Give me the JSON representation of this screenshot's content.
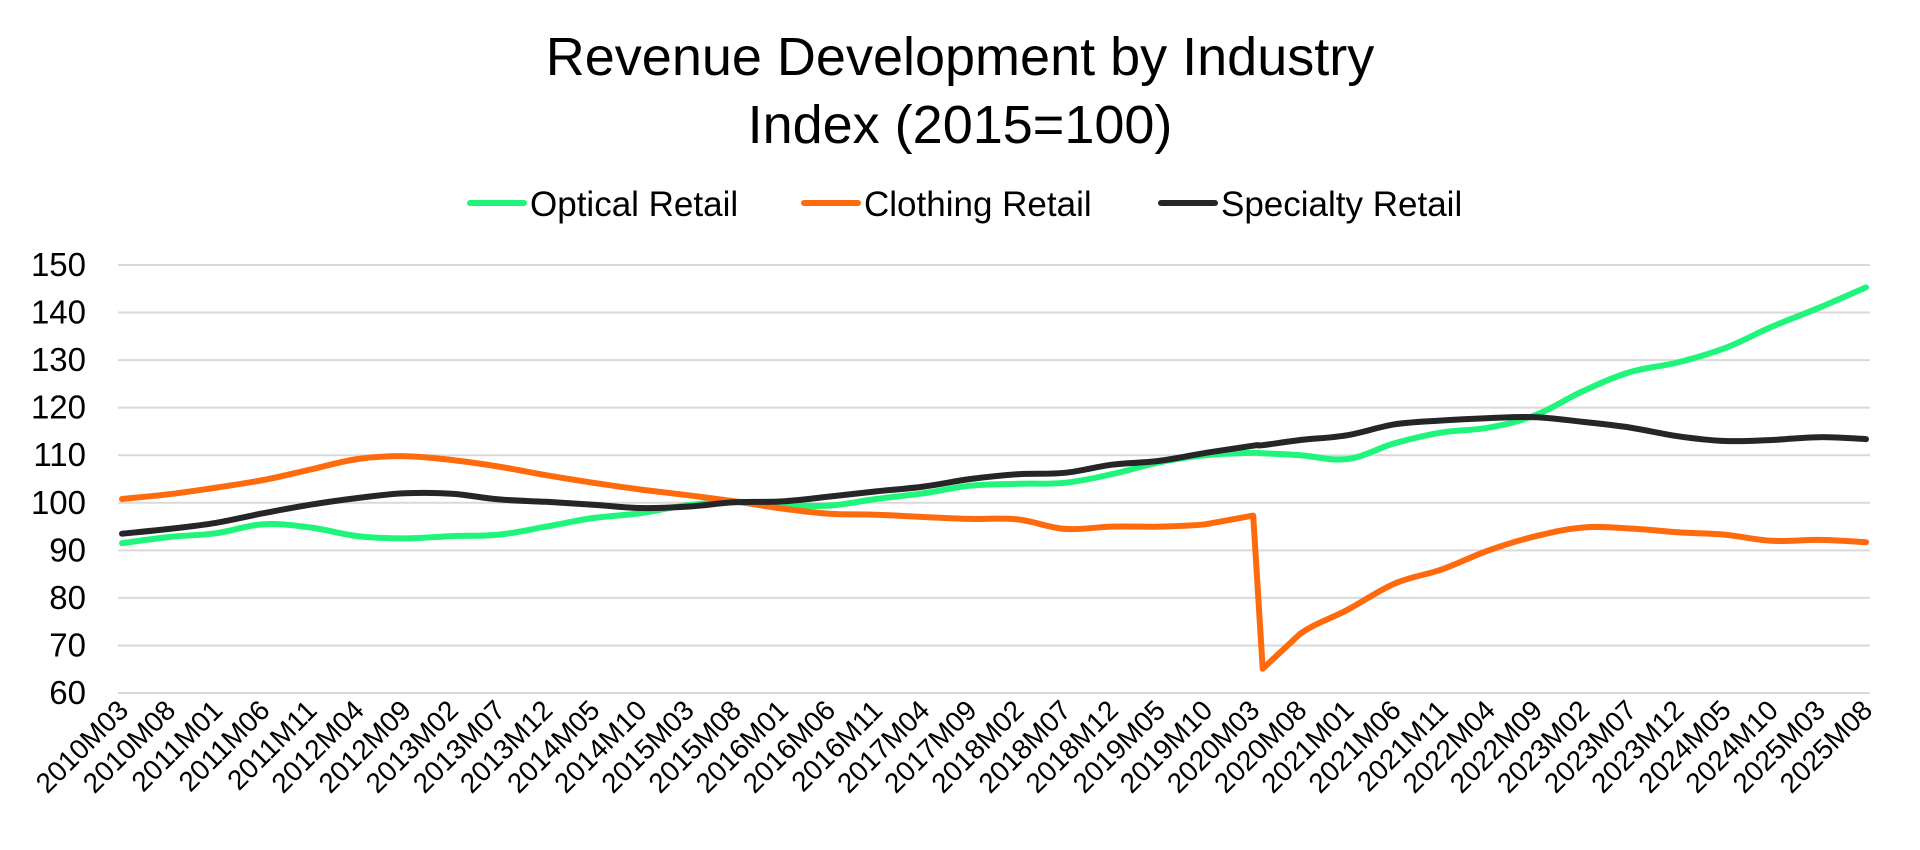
{
  "chart_data": {
    "type": "line",
    "title": "Revenue Development by Industry",
    "subtitle": "Index (2015=100)",
    "xlabel": "",
    "ylabel": "",
    "ylim": [
      60,
      150
    ],
    "yticks": [
      60,
      70,
      80,
      90,
      100,
      110,
      120,
      130,
      140,
      150
    ],
    "grid": true,
    "legend_position": "top",
    "xticks": [
      "2010M03",
      "2010M08",
      "2011M01",
      "2011M06",
      "2011M11",
      "2012M04",
      "2012M09",
      "2013M02",
      "2013M07",
      "2013M12",
      "2014M05",
      "2014M10",
      "2015M03",
      "2015M08",
      "2016M01",
      "2016M06",
      "2016M11",
      "2017M04",
      "2017M09",
      "2018M02",
      "2018M07",
      "2018M12",
      "2019M05",
      "2019M10",
      "2020M03",
      "2020M08",
      "2021M01",
      "2021M06",
      "2021M11",
      "2022M04",
      "2022M09",
      "2023M02",
      "2023M07",
      "2023M12",
      "2024M05",
      "2024M10",
      "2025M03",
      "2025M08"
    ],
    "x": [
      "2010M03",
      "2010M08",
      "2011M01",
      "2011M06",
      "2011M11",
      "2012M04",
      "2012M09",
      "2013M02",
      "2013M07",
      "2013M12",
      "2014M05",
      "2014M10",
      "2015M03",
      "2015M08",
      "2016M01",
      "2016M06",
      "2016M11",
      "2017M04",
      "2017M09",
      "2018M02",
      "2018M07",
      "2018M12",
      "2019M05",
      "2019M10",
      "2020M03",
      "2020M04",
      "2020M08",
      "2021M01",
      "2021M06",
      "2021M11",
      "2022M04",
      "2022M09",
      "2023M02",
      "2023M07",
      "2023M12",
      "2024M05",
      "2024M10",
      "2025M03",
      "2025M08"
    ],
    "series": [
      {
        "name": "Optical Retail",
        "color": "#1ef57a",
        "values": [
          91.5,
          92.8,
          93.6,
          95.5,
          94.8,
          93.0,
          92.5,
          93.0,
          93.3,
          95.0,
          96.8,
          97.8,
          99.5,
          100.2,
          99.6,
          99.4,
          100.8,
          102.0,
          103.6,
          104.0,
          104.2,
          106.0,
          108.5,
          110.0,
          110.5,
          110.4,
          110.0,
          109.2,
          112.5,
          114.8,
          115.8,
          118.5,
          123.5,
          127.5,
          129.5,
          132.5,
          137.0,
          141.0,
          145.3
        ]
      },
      {
        "name": "Clothing Retail",
        "color": "#ff6a0c",
        "values": [
          100.8,
          101.8,
          103.2,
          104.8,
          107.0,
          109.2,
          109.8,
          109.0,
          107.6,
          105.8,
          104.2,
          102.8,
          101.6,
          100.3,
          98.8,
          97.7,
          97.5,
          97.0,
          96.6,
          96.5,
          94.5,
          95.0,
          95.0,
          95.5,
          97.3,
          65.1,
          72.5,
          77.5,
          83.0,
          86.0,
          90.0,
          93.0,
          94.8,
          94.6,
          93.8,
          93.3,
          92.0,
          92.2,
          91.7
        ]
      },
      {
        "name": "Specialty Retail",
        "color": "#262626",
        "values": [
          93.5,
          94.5,
          95.8,
          97.8,
          99.6,
          101.0,
          102.0,
          101.9,
          100.7,
          100.2,
          99.6,
          98.9,
          99.2,
          100.1,
          100.3,
          101.3,
          102.4,
          103.4,
          105.0,
          106.0,
          106.3,
          108.0,
          108.8,
          110.5,
          112.0,
          112.1,
          113.2,
          114.2,
          116.5,
          117.3,
          117.8,
          118.0,
          117.0,
          115.8,
          114.0,
          113.0,
          113.2,
          113.8,
          113.4
        ]
      }
    ]
  }
}
